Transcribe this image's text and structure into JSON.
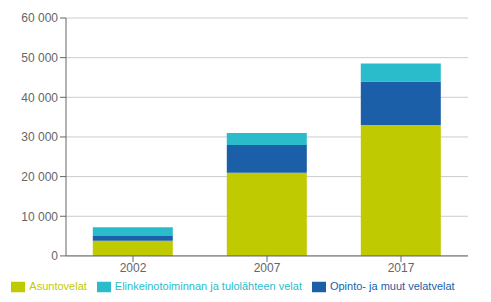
{
  "chart_data": {
    "type": "bar",
    "stacked": true,
    "categories": [
      "2002",
      "2007",
      "2017"
    ],
    "series": [
      {
        "name": "Asuntovelat",
        "color": "#bfca00",
        "values": [
          3800,
          21000,
          33000
        ]
      },
      {
        "name": "Opinto- ja muut velatvelat",
        "color": "#1a5fa8",
        "values": [
          1200,
          7000,
          11000
        ]
      },
      {
        "name": "Elinkeinotoiminnan ja tulolähteen velat",
        "color": "#2bbccc",
        "values": [
          2200,
          3000,
          4500
        ]
      }
    ],
    "ylim": [
      0,
      60000
    ],
    "yticks": [
      0,
      {
        "value": 10000,
        "label": "10 000"
      },
      {
        "value": 20000,
        "label": "20 000"
      },
      {
        "value": 30000,
        "label": "30 000"
      },
      {
        "value": 40000,
        "label": "40 000"
      },
      {
        "value": 50000,
        "label": "50 000"
      },
      {
        "value": 60000,
        "label": "60 000"
      }
    ],
    "grid": true,
    "legend": "bottom"
  }
}
